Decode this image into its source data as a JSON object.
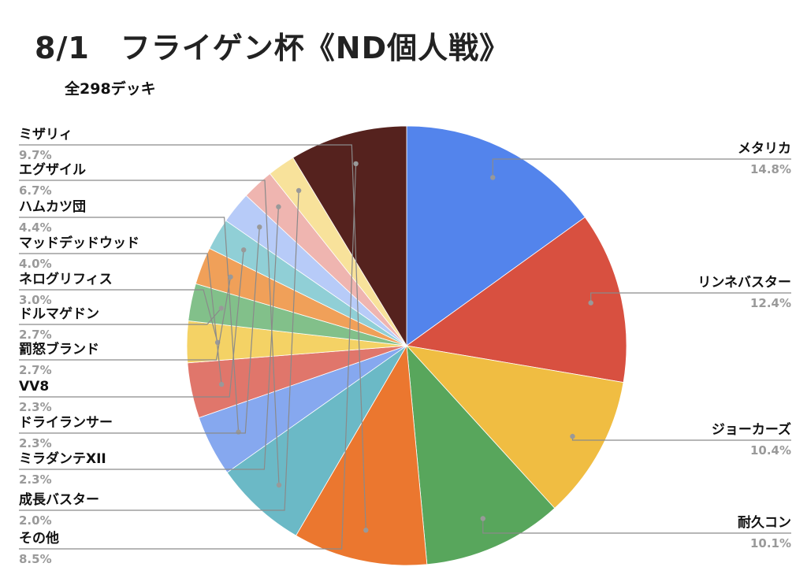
{
  "title": "8/1　フライゲン杯《ND個人戦》",
  "subtitle": "全298デッキ",
  "chart_data": {
    "type": "pie",
    "unit": "%",
    "start": "12 o'clock, clockwise",
    "slices": [
      {
        "label": "メタリカ",
        "value": 14.8,
        "display": "14.8%",
        "color": "#5384ec",
        "side": "right"
      },
      {
        "label": "リンネバスター",
        "value": 12.4,
        "display": "12.4%",
        "color": "#d85040",
        "side": "right"
      },
      {
        "label": "ジョーカーズ",
        "value": 10.4,
        "display": "10.4%",
        "color": "#f0bd42",
        "side": "right"
      },
      {
        "label": "耐久コン",
        "value": 10.1,
        "display": "10.1%",
        "color": "#58a65c",
        "side": "right"
      },
      {
        "label": "ミザリィ",
        "value": 9.7,
        "display": "9.7%",
        "color": "#eb772f",
        "side": "left"
      },
      {
        "label": "エグザイル",
        "value": 6.7,
        "display": "6.7%",
        "color": "#6bb9c6",
        "side": "left"
      },
      {
        "label": "ハムカツ団",
        "value": 4.4,
        "display": "4.4%",
        "color": "#86a8ef",
        "side": "left"
      },
      {
        "label": "マッドデッドウッド",
        "value": 4.0,
        "display": "4.0%",
        "color": "#e0766b",
        "side": "left"
      },
      {
        "label": "ネログリフィス",
        "value": 3.0,
        "display": "3.0%",
        "color": "#f4d265",
        "side": "left"
      },
      {
        "label": "ドルマゲドン",
        "value": 2.7,
        "display": "2.7%",
        "color": "#82c08a",
        "side": "left"
      },
      {
        "label": "罰怒ブランド",
        "value": 2.7,
        "display": "2.7%",
        "color": "#f0a059",
        "side": "left"
      },
      {
        "label": "VV8",
        "value": 2.3,
        "display": "2.3%",
        "color": "#90cfd6",
        "side": "left"
      },
      {
        "label": "ドライランサー",
        "value": 2.3,
        "display": "2.3%",
        "color": "#b7cbf8",
        "side": "left"
      },
      {
        "label": "ミラダンテXII",
        "value": 2.3,
        "display": "2.3%",
        "color": "#efb5b0",
        "side": "left"
      },
      {
        "label": "成長バスター",
        "value": 2.0,
        "display": "2.0%",
        "color": "#f8e29b",
        "side": "left"
      },
      {
        "label": "その他",
        "value": 8.5,
        "display": "8.5%",
        "color": "#55221e",
        "side": "left"
      }
    ],
    "leader_line_color": "#8a8a8a",
    "legend": "none"
  }
}
